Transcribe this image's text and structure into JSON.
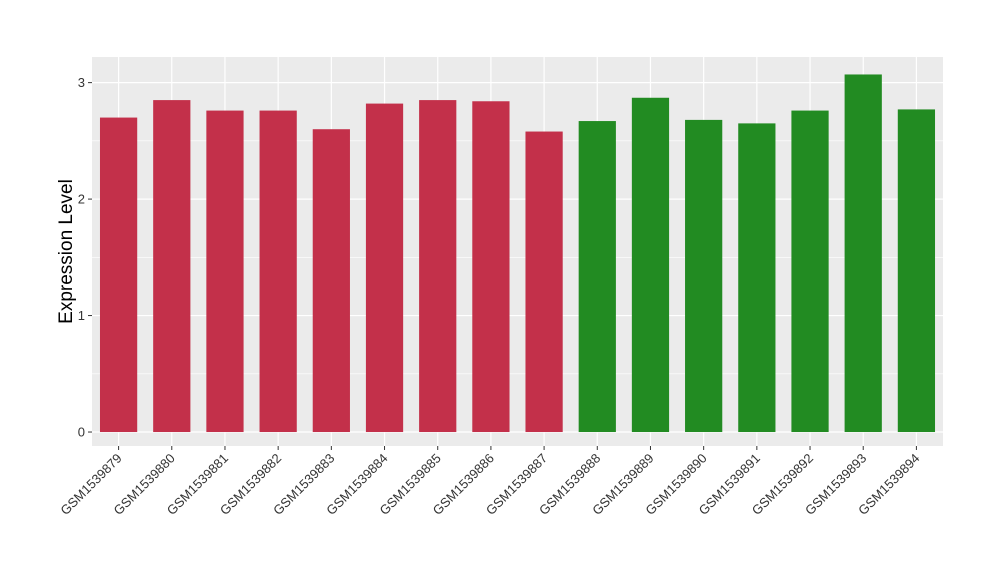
{
  "chart_data": {
    "type": "bar",
    "title": "",
    "xlabel": "",
    "ylabel": "Expression Level",
    "ylim": [
      -0.12,
      3.22
    ],
    "yticks": [
      0,
      1,
      2,
      3
    ],
    "grid": true,
    "categories": [
      "GSM1539879",
      "GSM1539880",
      "GSM1539881",
      "GSM1539882",
      "GSM1539883",
      "GSM1539884",
      "GSM1539885",
      "GSM1539886",
      "GSM1539887",
      "GSM1539888",
      "GSM1539889",
      "GSM1539890",
      "GSM1539891",
      "GSM1539892",
      "GSM1539893",
      "GSM1539894"
    ],
    "values": [
      2.7,
      2.85,
      2.76,
      2.76,
      2.6,
      2.82,
      2.85,
      2.84,
      2.58,
      2.67,
      2.87,
      2.68,
      2.65,
      2.76,
      3.07,
      2.77
    ],
    "bar_colors": [
      "#c3304a",
      "#c3304a",
      "#c3304a",
      "#c3304a",
      "#c3304a",
      "#c3304a",
      "#c3304a",
      "#c3304a",
      "#c3304a",
      "#228b22",
      "#228b22",
      "#228b22",
      "#228b22",
      "#228b22",
      "#228b22",
      "#228b22"
    ],
    "panel_background": "#ebebeb",
    "gridline_color": "#ffffff"
  }
}
